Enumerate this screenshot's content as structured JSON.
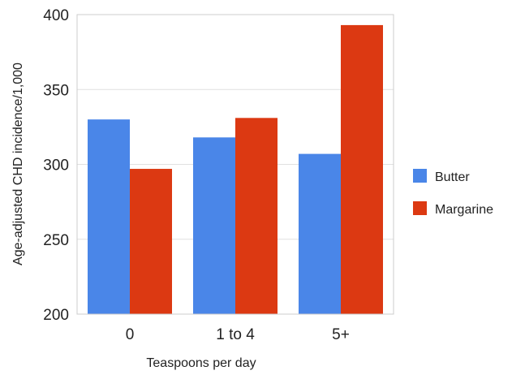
{
  "chart_data": {
    "type": "bar",
    "title": "",
    "xlabel": "Teaspoons per day",
    "ylabel": "Age-adjusted CHD incidence/1,000",
    "categories": [
      "0",
      "1 to 4",
      "5+"
    ],
    "series": [
      {
        "name": "Butter",
        "values": [
          330,
          318,
          307
        ],
        "color": "#4a86e8"
      },
      {
        "name": "Margarine",
        "values": [
          297,
          331,
          393
        ],
        "color": "#dc3912"
      }
    ],
    "ylim": [
      200,
      400
    ],
    "yticks": [
      200,
      250,
      300,
      350,
      400
    ],
    "grid": true,
    "legend_position": "right"
  }
}
